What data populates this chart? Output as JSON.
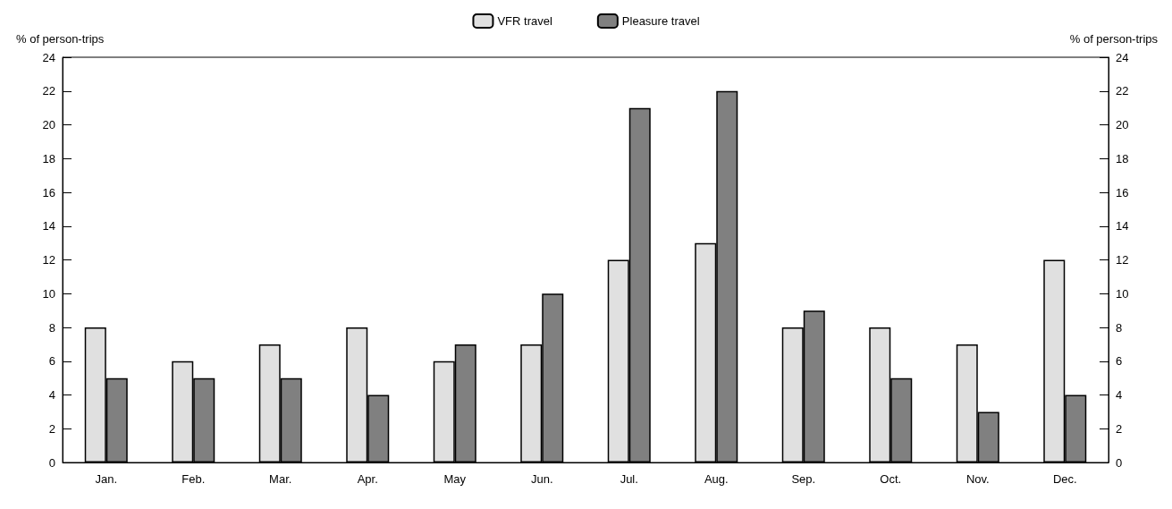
{
  "chart_data": {
    "type": "bar",
    "ylabel": "% of person-trips",
    "y2label": "% of person-trips",
    "categories": [
      "Jan.",
      "Feb.",
      "Mar.",
      "Apr.",
      "May",
      "Jun.",
      "Jul.",
      "Aug.",
      "Sep.",
      "Oct.",
      "Nov.",
      "Dec."
    ],
    "series": [
      {
        "name": "VFR travel",
        "color": "#e0e0e0",
        "values": [
          8,
          6,
          7,
          8,
          6,
          7,
          12,
          13,
          8,
          8,
          7,
          12
        ]
      },
      {
        "name": "Pleasure travel",
        "color": "#808080",
        "values": [
          5,
          5,
          5,
          4,
          7,
          10,
          21,
          22,
          9,
          5,
          3,
          4
        ]
      }
    ],
    "ylim": [
      0,
      24
    ],
    "yticks": [
      0,
      2,
      4,
      6,
      8,
      10,
      12,
      14,
      16,
      18,
      20,
      22,
      24
    ],
    "y2lim": [
      0,
      24
    ],
    "y2ticks": [
      0,
      2,
      4,
      6,
      8,
      10,
      12,
      14,
      16,
      18,
      20,
      22,
      24
    ],
    "grid": false,
    "legend": "top"
  }
}
